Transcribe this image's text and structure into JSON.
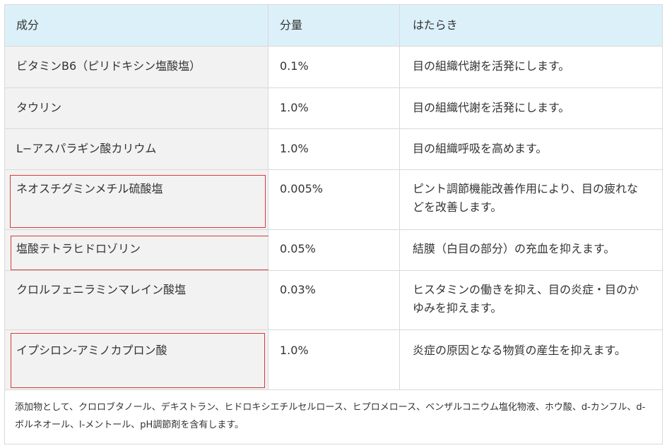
{
  "header": {
    "col1": "成分",
    "col2": "分量",
    "col3": "はたらき"
  },
  "rows": [
    {
      "name": "ビタミンB6（ピリドキシン塩酸塩）",
      "amount": "0.1%",
      "effect": "目の組織代謝を活発にします。"
    },
    {
      "name": "タウリン",
      "amount": "1.0%",
      "effect": "目の組織代謝を活発にします。"
    },
    {
      "name": "L−アスパラギン酸カリウム",
      "amount": "1.0%",
      "effect": "目の組織呼吸を高めます。"
    },
    {
      "name": "ネオスチグミンメチル硫酸塩",
      "amount": "0.005%",
      "effect": "ピント調節機能改善作用により、目の疲れなどを改善します。"
    },
    {
      "name": "塩酸テトラヒドロゾリン",
      "amount": "0.05%",
      "effect": "結膜（白目の部分）の充血を抑えます。"
    },
    {
      "name": "クロルフェニラミンマレイン酸塩",
      "amount": "0.03%",
      "effect": "ヒスタミンの働きを抑え、目の炎症・目のかゆみを抑えます。"
    },
    {
      "name": "イプシロン-アミノカプロン酸",
      "amount": "1.0%",
      "effect": "炎症の原因となる物質の産生を抑えます。"
    }
  ],
  "note": "添加物として、クロロブタノール、デキストラン、ヒドロキシエチルセルロース、ヒプロメロース、ベンザルコニウム塩化物液、ホウ酸、d-カンフル、d-ボルネオール、l-メントール、pH調節剤を含有します。",
  "colors": {
    "header_bg": "#dcf0f9",
    "name_col_bg": "#f2f2f2",
    "border": "#d9d9d9",
    "highlight": "#d63a3a"
  }
}
